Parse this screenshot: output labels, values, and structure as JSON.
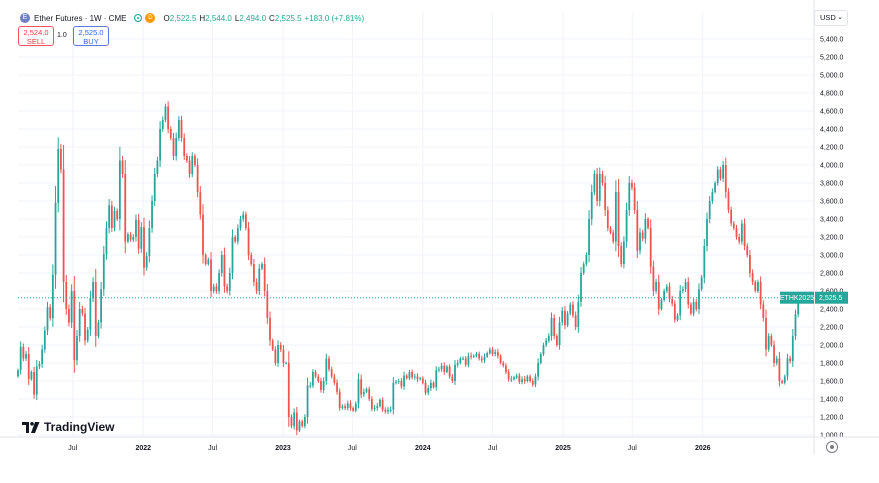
{
  "legend": {
    "symbol_icon": "ether-logo-icon",
    "symbol_letter": "E",
    "title": "Ether Futures · 1W · CME",
    "delay_badge": "D",
    "open_key": "O",
    "open": "2,522.5",
    "high_key": "H",
    "high": "2,544.0",
    "low_key": "L",
    "low": "2,494.0",
    "close_key": "C",
    "close": "2,525.5",
    "change": "+183.0 (+7.81%)"
  },
  "trade": {
    "sell_price": "2,524.0",
    "sell_label": "SELL",
    "spread": "1.0",
    "buy_price": "2,525.0",
    "buy_label": "BUY"
  },
  "currency": {
    "value": "USD",
    "chevron_icon": "chevron-down-icon"
  },
  "brand": {
    "name": "TradingView",
    "logo_icon": "tradingview-logo-icon"
  },
  "settings_icon": "settings-icon",
  "colors": {
    "up": "#26a69a",
    "down": "#ef5350",
    "grid": "#f0f3fa",
    "price_line": "#26a69a"
  },
  "chart_data": {
    "type": "candlestick",
    "title": "Ether Futures · 1W · CME",
    "ylabel": "",
    "xlabel": "",
    "ylim": [
      950,
      5600
    ],
    "y_ticks": [
      1000,
      1200,
      1400,
      1600,
      1800,
      2000,
      2200,
      2400,
      2600,
      2800,
      3000,
      3200,
      3400,
      3600,
      3800,
      4000,
      4200,
      4400,
      4600,
      4800,
      5000,
      5200,
      5400
    ],
    "y_tick_labels": [
      "1,000.0",
      "1,200.0",
      "1,400.0",
      "1,600.0",
      "1,800.0",
      "2,000.0",
      "2,200.0",
      "2,400.0",
      "2,600.0",
      "2,800.0",
      "3,000.0",
      "3,200.0",
      "3,400.0",
      "3,600.0",
      "3,800.0",
      "4,000.0",
      "4,200.0",
      "4,400.0",
      "4,600.0",
      "4,800.0",
      "5,000.0",
      "5,200.0",
      "5,400.0"
    ],
    "x_range": [
      "2021-02-08",
      "2026-09-01"
    ],
    "x_ticks": [
      {
        "date": "2021-07-01",
        "label": "Jul",
        "year": false
      },
      {
        "date": "2022-01-01",
        "label": "2022",
        "year": true
      },
      {
        "date": "2022-07-01",
        "label": "Jul",
        "year": false
      },
      {
        "date": "2023-01-01",
        "label": "2023",
        "year": true
      },
      {
        "date": "2023-07-01",
        "label": "Jul",
        "year": false
      },
      {
        "date": "2024-01-01",
        "label": "2024",
        "year": true
      },
      {
        "date": "2024-07-01",
        "label": "Jul",
        "year": false
      },
      {
        "date": "2025-01-01",
        "label": "2025",
        "year": true
      },
      {
        "date": "2025-07-01",
        "label": "Jul",
        "year": false
      },
      {
        "date": "2026-01-01",
        "label": "2026",
        "year": true
      }
    ],
    "grid": true,
    "current_price": {
      "value": 2525.5,
      "tag": "ETHK2025",
      "label": "2,525.5"
    },
    "series_start": "2021-02-08",
    "period": "1W",
    "closes": [
      1720,
      1980,
      1850,
      1900,
      1620,
      1700,
      1450,
      1760,
      1790,
      1950,
      2160,
      2420,
      2300,
      2780,
      3580,
      4180,
      3950,
      2700,
      2400,
      2250,
      2600,
      1830,
      2100,
      2400,
      2350,
      2050,
      2170,
      2520,
      2700,
      2100,
      2250,
      2620,
      3010,
      3300,
      3550,
      3300,
      3490,
      3400,
      4050,
      3900,
      3150,
      3230,
      3170,
      3200,
      3390,
      3070,
      3310,
      2860,
      2990,
      3300,
      3600,
      3900,
      4050,
      4400,
      4500,
      4650,
      4400,
      4300,
      4100,
      4300,
      4500,
      4300,
      4100,
      4050,
      3900,
      4100,
      4000,
      3700,
      3450,
      3000,
      2900,
      2950,
      2600,
      2650,
      2600,
      2800,
      3000,
      2650,
      2600,
      2800,
      3200,
      3150,
      3300,
      3400,
      3450,
      3300,
      3000,
      2900,
      2700,
      2600,
      2850,
      2900,
      2600,
      2300,
      2050,
      1950,
      1800,
      2000,
      1950,
      1800,
      1800,
      1200,
      1100,
      1250,
      1050,
      1150,
      1100,
      1200,
      1550,
      1550,
      1700,
      1650,
      1600,
      1500,
      1600,
      1850,
      1730,
      1650,
      1580,
      1480,
      1300,
      1320,
      1300,
      1350,
      1300,
      1270,
      1350,
      1620,
      1450,
      1480,
      1510,
      1400,
      1290,
      1300,
      1320,
      1390,
      1280,
      1260,
      1280,
      1280,
      1580,
      1590,
      1600,
      1540,
      1660,
      1630,
      1700,
      1640,
      1650,
      1620,
      1630,
      1580,
      1470,
      1520,
      1580,
      1530,
      1720,
      1730,
      1770,
      1700,
      1760,
      1650,
      1600,
      1780,
      1800,
      1850,
      1850,
      1780,
      1880,
      1870,
      1880,
      1900,
      1850,
      1830,
      1870,
      1910,
      1950,
      1900,
      1920,
      1880,
      1800,
      1770,
      1700,
      1620,
      1620,
      1640,
      1660,
      1590,
      1620,
      1600,
      1650,
      1600,
      1560,
      1650,
      1800,
      1900,
      2000,
      2050,
      2100,
      2300,
      2100,
      2000,
      2250,
      2380,
      2220,
      2350,
      2450,
      2330,
      2200,
      2480,
      2800,
      2900,
      3000,
      3400,
      3700,
      3900,
      3600,
      3900,
      3800,
      3500,
      3300,
      3250,
      3150,
      3700,
      3100,
      2900,
      3150,
      3500,
      3800,
      3750,
      3500,
      3050,
      3250,
      3180,
      3400,
      3300,
      2870,
      2600,
      2700,
      2400,
      2500,
      2600,
      2650,
      2510,
      2460,
      2280,
      2330,
      2600,
      2620,
      2700,
      2450,
      2350,
      2480,
      2400,
      2620,
      2750,
      3100,
      3400,
      3600,
      3700,
      3800,
      3950,
      3850,
      4000,
      3700,
      3500,
      3350,
      3300,
      3200,
      3150,
      3350,
      3100,
      3000,
      2800,
      2700,
      2600,
      2700,
      2450,
      2300,
      1950,
      2100,
      2000,
      1800,
      1850,
      1600,
      1580,
      1650,
      1850,
      1820,
      2100,
      2342,
      2525.5
    ]
  }
}
